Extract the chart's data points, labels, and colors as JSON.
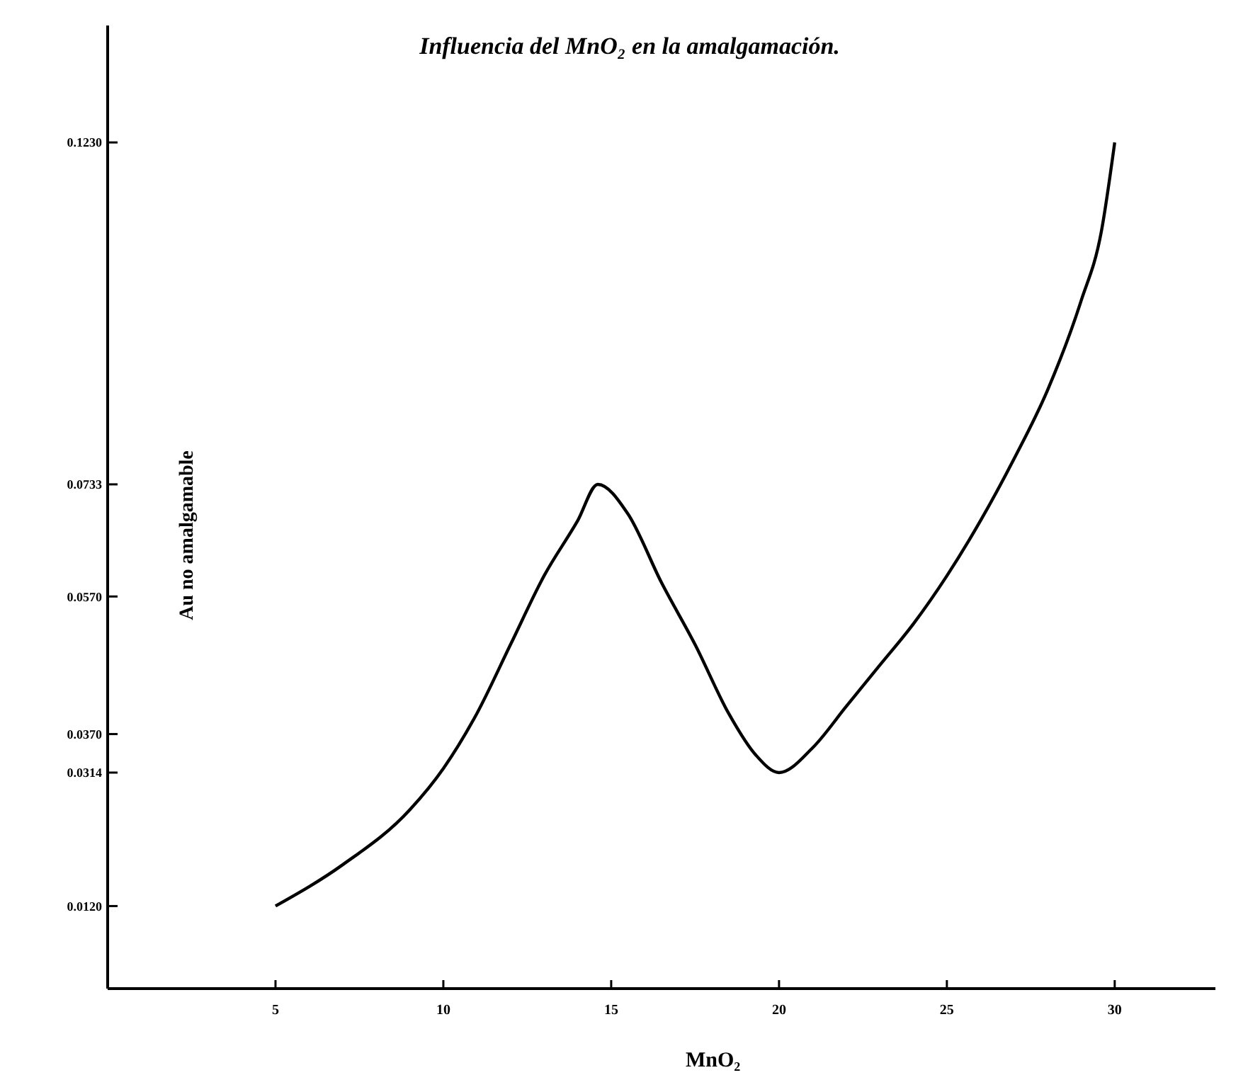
{
  "chart_data": {
    "type": "line",
    "title": "Influencia del MnO₂ en la amalgamación.",
    "xlabel": "MnO₂",
    "ylabel": "Au   no amalgamable",
    "x": [
      5,
      7,
      9,
      10,
      11,
      12,
      13,
      14,
      14.6,
      15.5,
      16.5,
      17.5,
      18.5,
      19.3,
      20,
      21,
      22,
      23,
      24,
      25,
      26,
      27,
      28,
      29,
      29.6,
      30
    ],
    "series": [
      {
        "color": "#000000",
        "values": [
          0.012,
          0.018,
          0.026,
          0.032,
          0.04,
          0.05,
          0.06,
          0.068,
          0.0733,
          0.069,
          0.059,
          0.05,
          0.04,
          0.034,
          0.0314,
          0.035,
          0.041,
          0.047,
          0.053,
          0.06,
          0.068,
          0.077,
          0.087,
          0.1,
          0.11,
          0.123
        ]
      }
    ],
    "xlim": [
      0,
      33
    ],
    "xticks": [
      5,
      10,
      15,
      20,
      25,
      30
    ],
    "ylim": [
      0,
      0.14
    ],
    "yticks": [
      {
        "value": 0.012,
        "label": "0.0120"
      },
      0.0314,
      {
        "value": 0.037,
        "label": "0.0370"
      },
      {
        "value": 0.057,
        "label": "0.0570"
      },
      0.0733,
      {
        "value": 0.123,
        "label": "0.1230"
      }
    ],
    "grid": false,
    "marker": "none",
    "line_style": "solid"
  }
}
